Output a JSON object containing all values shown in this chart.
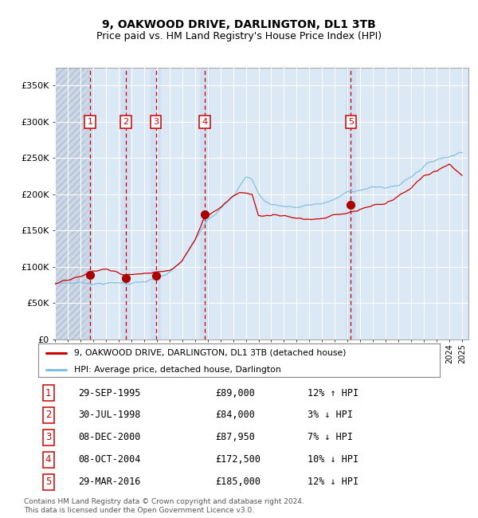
{
  "title": "9, OAKWOOD DRIVE, DARLINGTON, DL1 3TB",
  "subtitle": "Price paid vs. HM Land Registry's House Price Index (HPI)",
  "transactions": [
    {
      "num": 1,
      "date": "29-SEP-1995",
      "date_x": 1995.75,
      "price": 89000,
      "pct": "12%",
      "dir": "↑"
    },
    {
      "num": 2,
      "date": "30-JUL-1998",
      "date_x": 1998.58,
      "price": 84000,
      "pct": "3%",
      "dir": "↓"
    },
    {
      "num": 3,
      "date": "08-DEC-2000",
      "date_x": 2000.93,
      "price": 87950,
      "pct": "7%",
      "dir": "↓"
    },
    {
      "num": 4,
      "date": "08-OCT-2004",
      "date_x": 2004.77,
      "price": 172500,
      "pct": "10%",
      "dir": "↓"
    },
    {
      "num": 5,
      "date": "29-MAR-2016",
      "date_x": 2016.25,
      "price": 185000,
      "pct": "12%",
      "dir": "↓"
    }
  ],
  "hpi_color": "#7fbfdf",
  "price_color": "#cc0000",
  "marker_color": "#aa0000",
  "dashed_color": "#cc0000",
  "bg_color": "#dbe8f5",
  "hatch_bg_color": "#ccd8e8",
  "hatch_line_color": "#b0bece",
  "ylim": [
    0,
    375000
  ],
  "xlim_start": 1993.0,
  "xlim_end": 2025.5,
  "legend_label_price": "9, OAKWOOD DRIVE, DARLINGTON, DL1 3TB (detached house)",
  "legend_label_hpi": "HPI: Average price, detached house, Darlington",
  "footer": "Contains HM Land Registry data © Crown copyright and database right 2024.\nThis data is licensed under the Open Government Licence v3.0.",
  "yticks": [
    0,
    50000,
    100000,
    150000,
    200000,
    250000,
    300000,
    350000
  ],
  "ytick_labels": [
    "£0",
    "£50K",
    "£100K",
    "£150K",
    "£200K",
    "£250K",
    "£300K",
    "£350K"
  ],
  "title_fontsize": 10,
  "subtitle_fontsize": 9
}
